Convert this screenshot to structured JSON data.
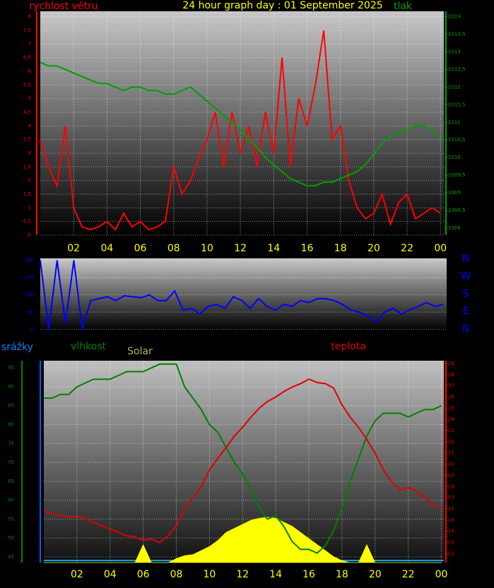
{
  "chart_data": [
    {
      "type": "line",
      "title": "24 hour graph day : 01 September 2025",
      "x": [
        0,
        0.5,
        1,
        1.5,
        2,
        2.5,
        3,
        3.5,
        4,
        4.5,
        5,
        5.5,
        6,
        6.5,
        7,
        7.5,
        8,
        8.5,
        9,
        9.5,
        10,
        10.5,
        11,
        11.5,
        12,
        12.5,
        13,
        13.5,
        14,
        14.5,
        15,
        15.5,
        16,
        16.5,
        17,
        17.5,
        18,
        18.5,
        19,
        19.5,
        20,
        20.5,
        21,
        21.5,
        22,
        22.5,
        23,
        23.5,
        24
      ],
      "xlim": [
        0,
        24.2
      ],
      "xticks": [
        {
          "value": 2,
          "label": "02"
        },
        {
          "value": 4,
          "label": "04"
        },
        {
          "value": 6,
          "label": "06"
        },
        {
          "value": 8,
          "label": "08"
        },
        10,
        12,
        14,
        16,
        18,
        20,
        22,
        {
          "value": 24,
          "label": "00"
        }
      ],
      "ylim": [
        0,
        8.2
      ],
      "yticks": [
        0,
        {
          "value": 0.5,
          "label": "0,5"
        },
        1,
        {
          "value": 1.5,
          "label": "1,5"
        },
        2,
        {
          "value": 2.5,
          "label": "2,5"
        },
        3,
        {
          "value": 3.5,
          "label": "3,5"
        },
        4,
        {
          "value": 4.5,
          "label": "4,5"
        },
        5,
        {
          "value": 5.5,
          "label": "5,5"
        },
        6,
        {
          "value": 6.5,
          "label": "6,5"
        },
        7,
        {
          "value": 7.5,
          "label": "7,5"
        },
        8
      ],
      "y2lim": [
        1007.8,
        1014.15
      ],
      "y2ticks": [
        1008,
        {
          "value": 1008.5,
          "label": "1008,5"
        },
        1009,
        {
          "value": 1009.5,
          "label": "1009,5"
        },
        1010,
        {
          "value": 1010.5,
          "label": "1010,5"
        },
        1011,
        {
          "value": 1011.5,
          "label": "1011,5"
        },
        1012,
        {
          "value": 1012.5,
          "label": "1012,5"
        },
        1013,
        {
          "value": 1013.5,
          "label": "1013,5"
        },
        1014
      ],
      "grid": true,
      "series": [
        {
          "name": "rychlost větru",
          "color": "#ff0000",
          "values": [
            3.5,
            2.5,
            1.8,
            4,
            1,
            0.3,
            0.2,
            0.3,
            0.5,
            0.2,
            0.8,
            0.3,
            0.5,
            0.2,
            0.3,
            0.5,
            2.5,
            1.5,
            2,
            2.8,
            3.5,
            4.5,
            2.5,
            4.5,
            3,
            4,
            2.5,
            4.5,
            3,
            6.5,
            2.5,
            5,
            4,
            5.5,
            7.5,
            3.5,
            4,
            2,
            1,
            0.6,
            0.8,
            1.5,
            0.4,
            1.2,
            1.5,
            0.6,
            0.8,
            1,
            0.8
          ]
        },
        {
          "name": "tlak",
          "color": "#00a000",
          "axis": "y2",
          "values": [
            1012.7,
            1012.6,
            1012.6,
            1012.5,
            1012.4,
            1012.3,
            1012.2,
            1012.1,
            1012.1,
            1012.0,
            1011.9,
            1012.0,
            1012.0,
            1011.9,
            1011.9,
            1011.8,
            1011.8,
            1011.9,
            1012.0,
            1011.8,
            1011.6,
            1011.4,
            1011.2,
            1011.0,
            1010.8,
            1010.5,
            1010.3,
            1010.0,
            1009.8,
            1009.6,
            1009.4,
            1009.3,
            1009.2,
            1009.2,
            1009.3,
            1009.3,
            1009.4,
            1009.5,
            1009.6,
            1009.8,
            1010.1,
            1010.4,
            1010.6,
            1010.7,
            1010.8,
            1010.9,
            1010.9,
            1010.8,
            1010.5
          ]
        }
      ]
    },
    {
      "type": "line",
      "x": [
        0,
        0.5,
        1,
        1.5,
        2,
        2.5,
        3,
        3.5,
        4,
        4.5,
        5,
        5.5,
        6,
        6.5,
        7,
        7.5,
        8,
        8.5,
        9,
        9.5,
        10,
        10.5,
        11,
        11.5,
        12,
        12.5,
        13,
        13.5,
        14,
        14.5,
        15,
        15.5,
        16,
        16.5,
        17,
        17.5,
        18,
        18.5,
        19,
        19.5,
        20,
        20.5,
        21,
        21.5,
        22,
        22.5,
        23,
        23.5,
        24
      ],
      "xlim": [
        0,
        24.2
      ],
      "ylim": [
        -5,
        370
      ],
      "yticks": [
        0,
        90,
        180,
        270,
        360
      ],
      "grid": true,
      "compass": [
        "N",
        "W",
        "S",
        "E",
        "N"
      ],
      "series": [
        {
          "color": "#0000ff",
          "values": [
            360,
            0,
            360,
            30,
            360,
            0,
            150,
            160,
            170,
            150,
            175,
            170,
            165,
            180,
            150,
            150,
            200,
            100,
            110,
            80,
            120,
            130,
            110,
            170,
            150,
            110,
            160,
            120,
            100,
            130,
            120,
            150,
            140,
            160,
            160,
            150,
            130,
            100,
            90,
            70,
            40,
            90,
            110,
            80,
            100,
            120,
            140,
            120,
            130
          ]
        }
      ]
    },
    {
      "type": "line",
      "x": [
        0,
        0.5,
        1,
        1.5,
        2,
        2.5,
        3,
        3.5,
        4,
        4.5,
        5,
        5.5,
        6,
        6.5,
        7,
        7.5,
        8,
        8.5,
        9,
        9.5,
        10,
        10.5,
        11,
        11.5,
        12,
        12.5,
        13,
        13.5,
        14,
        14.5,
        15,
        15.5,
        16,
        16.5,
        17,
        17.5,
        18,
        18.5,
        19,
        19.5,
        20,
        20.5,
        21,
        21.5,
        22,
        22.5,
        23,
        23.5,
        24
      ],
      "xlim": [
        0,
        24.15
      ],
      "xticks": [
        {
          "value": 2,
          "label": "02"
        },
        {
          "value": 4,
          "label": "04"
        },
        {
          "value": 6,
          "label": "06"
        },
        {
          "value": 8,
          "label": "08"
        },
        10,
        12,
        14,
        16,
        18,
        20,
        22,
        {
          "value": 24,
          "label": "00"
        }
      ],
      "ylim": [
        43.5,
        96.9
      ],
      "yticks": [
        45,
        50,
        55,
        60,
        65,
        70,
        75,
        80,
        85,
        90,
        95
      ],
      "y2lim": [
        11.2,
        29.25
      ],
      "y2ticks": [
        12,
        13,
        14,
        15,
        16,
        17,
        18,
        19,
        20,
        21,
        22,
        23,
        24,
        25,
        26,
        27,
        28,
        29
      ],
      "y3lim": [
        0,
        1000
      ],
      "grid": true,
      "precip_label": "srážky",
      "series": [
        {
          "name": "Solar",
          "color": "#ffff00",
          "axis": "y3",
          "fill": true,
          "values": [
            0,
            0,
            0,
            0,
            0,
            0,
            0,
            0,
            0,
            0,
            0,
            0,
            90,
            0,
            0,
            0,
            20,
            35,
            40,
            60,
            80,
            110,
            150,
            170,
            190,
            210,
            220,
            225,
            220,
            200,
            180,
            150,
            120,
            90,
            60,
            30,
            10,
            0,
            0,
            90,
            0,
            0,
            0,
            0,
            0,
            0,
            0,
            0,
            0
          ]
        },
        {
          "name": "vlhkost",
          "color": "#008000",
          "values": [
            87,
            87,
            88,
            88,
            90,
            91,
            92,
            92,
            92,
            93,
            94,
            94,
            94,
            95,
            96,
            96,
            96,
            90,
            87,
            84,
            80,
            78,
            74,
            70,
            67,
            63,
            58,
            55,
            56,
            53,
            49,
            47,
            47,
            46,
            48,
            52,
            58,
            65,
            71,
            77,
            81,
            83,
            83,
            83,
            82,
            83,
            84,
            84,
            85
          ]
        },
        {
          "name": "teplota",
          "color": "#e00000",
          "axis": "y2",
          "values": [
            15.8,
            15.6,
            15.4,
            15.3,
            15.3,
            15.1,
            14.8,
            14.5,
            14.2,
            13.9,
            13.6,
            13.5,
            13.2,
            13.3,
            13.0,
            13.6,
            14.5,
            16.0,
            17.0,
            18.0,
            19.5,
            20.5,
            21.5,
            22.5,
            23.3,
            24.2,
            25.0,
            25.6,
            26.0,
            26.5,
            26.9,
            27.2,
            27.6,
            27.3,
            27.2,
            26.8,
            25.3,
            24.2,
            23.3,
            22.2,
            21.0,
            19.5,
            18.4,
            17.7,
            17.9,
            17.6,
            17.0,
            16.3,
            16.1
          ]
        }
      ]
    }
  ]
}
